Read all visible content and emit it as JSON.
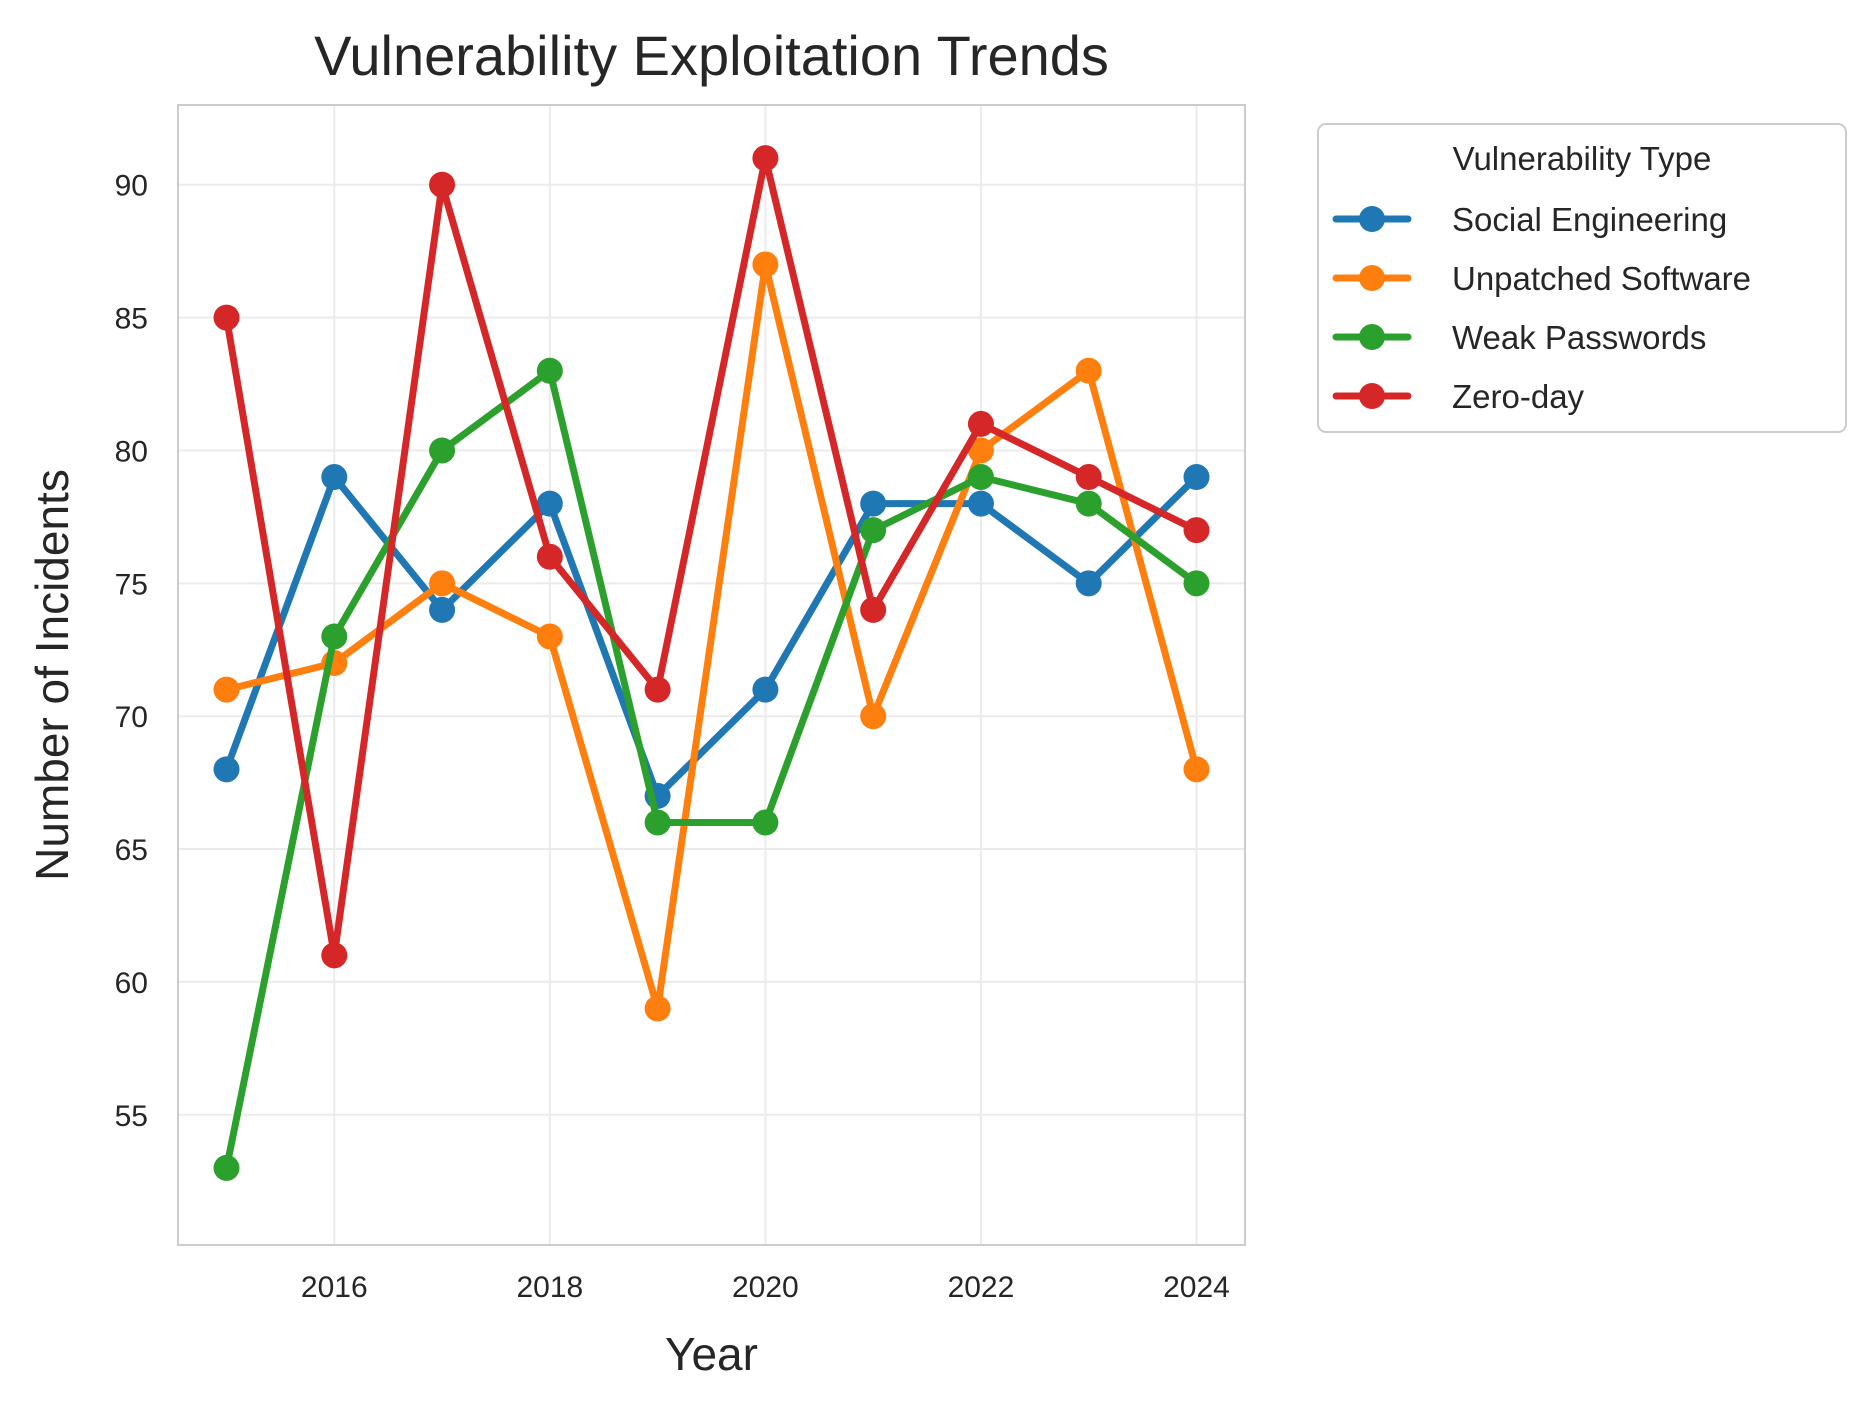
{
  "chart_data": {
    "type": "line",
    "title": "Vulnerability Exploitation Trends",
    "xlabel": "Year",
    "ylabel": "Number of Incidents",
    "x": [
      2015,
      2016,
      2017,
      2018,
      2019,
      2020,
      2021,
      2022,
      2023,
      2024
    ],
    "xticks": [
      2016,
      2018,
      2020,
      2022,
      2024
    ],
    "yticks": [
      55,
      60,
      65,
      70,
      75,
      80,
      85,
      90
    ],
    "xlim": [
      2014.55,
      2024.45
    ],
    "ylim": [
      50.1,
      93.0
    ],
    "grid": true,
    "legend": {
      "title": "Vulnerability Type",
      "placement": "outside-top-right"
    },
    "series": [
      {
        "name": "Social Engineering",
        "color": "#1f77b4",
        "values": [
          68,
          79,
          74,
          78,
          67,
          71,
          78,
          78,
          75,
          79
        ]
      },
      {
        "name": "Unpatched Software",
        "color": "#ff7f0e",
        "values": [
          71,
          72,
          75,
          73,
          59,
          87,
          70,
          80,
          83,
          68
        ]
      },
      {
        "name": "Weak Passwords",
        "color": "#2ca02c",
        "values": [
          53,
          73,
          80,
          83,
          66,
          66,
          77,
          79,
          78,
          75
        ]
      },
      {
        "name": "Zero-day",
        "color": "#d62728",
        "values": [
          85,
          61,
          90,
          76,
          71,
          91,
          74,
          81,
          79,
          77
        ]
      }
    ]
  }
}
